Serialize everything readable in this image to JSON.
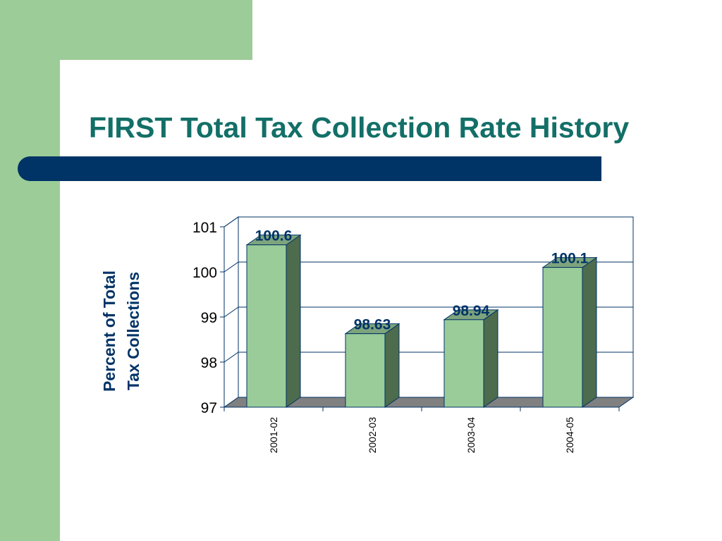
{
  "slide": {
    "title": "FIRST Total Tax Collection Rate History"
  },
  "colors": {
    "accent_green": "#9ccc98",
    "title_teal": "#136f67",
    "bar_navy": "#003366",
    "bar_front": "#99cc99",
    "bar_side": "#4d6b4d",
    "floor": "#808080"
  },
  "chart_data": {
    "type": "bar",
    "title": "",
    "xlabel": "",
    "ylabel": "Percent of Total\nTax Collections",
    "categories": [
      "2001-02",
      "2002-03",
      "2003-04",
      "2004-05"
    ],
    "values": [
      100.6,
      98.63,
      98.94,
      100.1
    ],
    "data_labels": [
      "100.6",
      "98.63",
      "98.94",
      "100.1"
    ],
    "ylim": [
      97,
      101
    ],
    "yticks": [
      97,
      98,
      99,
      100,
      101
    ],
    "grid": true,
    "style": "3d-bars",
    "legend": "none"
  }
}
